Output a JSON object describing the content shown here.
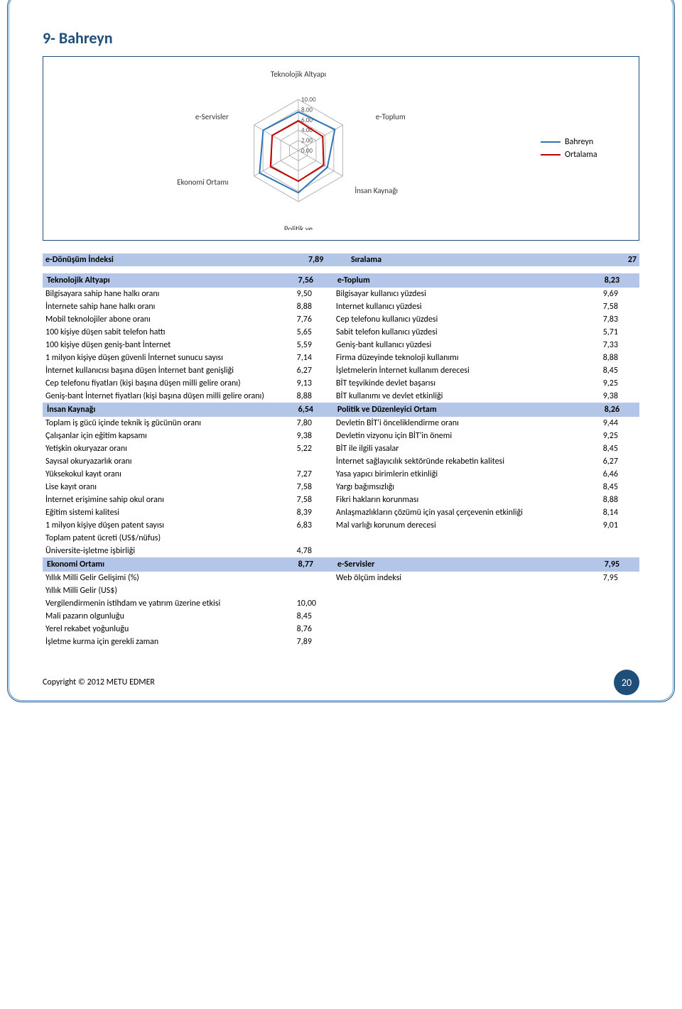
{
  "title": "9-  Bahreyn",
  "chart": {
    "axes": [
      "Teknolojik Altyapı",
      "e-Toplum",
      "İnsan Kaynağı",
      "Politik ve\nDüzenleyici Ortam",
      "Ekonomi Ortamı",
      "e-Servisler"
    ],
    "ticks": [
      "10.00",
      "8.00",
      "6.00",
      "4.00",
      "2.00",
      "0.00"
    ],
    "max": 10,
    "series": [
      {
        "name": "Bahreyn",
        "color": "#2e75b6",
        "values": [
          7.56,
          8.23,
          6.54,
          8.26,
          8.77,
          7.95
        ]
      },
      {
        "name": "Ortalama",
        "color": "#c00000",
        "values": [
          5.8,
          5.5,
          5.7,
          6.0,
          6.3,
          5.9
        ]
      }
    ],
    "grid_color": "#a6a6a6",
    "bg": "#ffffff"
  },
  "index": {
    "label": "e-Dönüşüm İndeksi",
    "value": "7,89",
    "rank_label": "Sıralama",
    "rank": "27"
  },
  "sections": [
    {
      "left_hdr": "Teknolojik Altyapı",
      "left_val": "7,56",
      "right_hdr": "e-Toplum",
      "right_val": "8,23",
      "rows": [
        [
          "Bilgisayara sahip hane halkı oranı",
          "9,50",
          "Bilgisayar kullanıcı yüzdesi",
          "9,69"
        ],
        [
          "İnternete sahip hane halkı oranı",
          "8,88",
          "Internet kullanıcı yüzdesi",
          "7,58"
        ],
        [
          "Mobil teknolojiler abone oranı",
          "7,76",
          "Cep telefonu kullanıcı yüzdesi",
          "7,83"
        ],
        [
          "100 kişiye düşen sabit telefon hattı",
          "5,65",
          "Sabit telefon kullanıcı yüzdesi",
          "5,71"
        ],
        [
          "100 kişiye düşen geniş-bant İnternet",
          "5,59",
          "Geniş-bant kullanıcı yüzdesi",
          "7,33"
        ],
        [
          "1 milyon kişiye düşen güvenli İnternet sunucu sayısı",
          "7,14",
          "Firma düzeyinde teknoloji kullanımı",
          "8,88"
        ],
        [
          "İnternet kullanıcısı başına düşen İnternet bant genişliği",
          "6,27",
          "İşletmelerin İnternet kullanım derecesi",
          "8,45"
        ],
        [
          "Cep telefonu fiyatları (kişi başına düşen milli gelire oranı)",
          "9,13",
          "BİT teşvikinde devlet başarısı",
          "9,25"
        ],
        [
          "Geniş-bant İnternet fiyatları (kişi başına düşen milli gelire oranı)",
          "8,88",
          "BİT kullanımı ve devlet etkinliği",
          "9,38"
        ]
      ]
    },
    {
      "left_hdr": "İnsan Kaynağı",
      "left_val": "6,54",
      "right_hdr": "Politik ve Düzenleyici Ortam",
      "right_val": "8,26",
      "rows": [
        [
          "Toplam iş gücü içinde teknik iş gücünün oranı",
          "7,80",
          "Devletin BİT'i önceliklendirme oranı",
          "9,44"
        ],
        [
          "Çalışanlar için eğitim kapsamı",
          "9,38",
          "Devletin vizyonu için BİT'in önemi",
          "9,25"
        ],
        [
          "Yetişkin okuryazar oranı",
          "5,22",
          "BİT ile ilgili yasalar",
          "8,45"
        ],
        [
          "Sayısal okuryazarlık oranı",
          "",
          "İnternet sağlayıcılık sektöründe rekabetin kalitesi",
          "6,27"
        ],
        [
          "Yüksekokul kayıt oranı",
          "7,27",
          "Yasa yapıcı birimlerin etkinliği",
          "6,46"
        ],
        [
          "Lise kayıt oranı",
          "7,58",
          "Yargı bağımsızlığı",
          "8,45"
        ],
        [
          "İnternet erişimine sahip okul oranı",
          "7,58",
          "Fikri hakların korunması",
          "8,88"
        ],
        [
          "Eğitim sistemi kalitesi",
          "8,39",
          "Anlaşmazlıkların çözümü için yasal çerçevenin etkinliği",
          "8,14"
        ],
        [
          "1 milyon kişiye düşen patent sayısı",
          "6,83",
          "Mal varlığı korunum derecesi",
          "9,01"
        ],
        [
          "Toplam patent ücreti (US$/nüfus)",
          "",
          "",
          ""
        ],
        [
          "Üniversite-işletme işbirliği",
          "4,78",
          "",
          ""
        ]
      ]
    },
    {
      "left_hdr": "Ekonomi Ortamı",
      "left_val": "8,77",
      "right_hdr": "e-Servisler",
      "right_val": "7,95",
      "rows": [
        [
          "Yıllık Milli Gelir Gelişimi (%)",
          "",
          "Web ölçüm indeksi",
          "7,95"
        ],
        [
          "Yıllık Milli Gelir (US$)",
          "",
          "",
          ""
        ],
        [
          "Vergilendirmenin istihdam ve yatırım üzerine etkisi",
          "10,00",
          "",
          ""
        ],
        [
          "Mali pazarın olgunluğu",
          "8,45",
          "",
          ""
        ],
        [
          "Yerel rekabet yoğunluğu",
          "8,76",
          "",
          ""
        ],
        [
          "İşletme kurma için gerekli zaman",
          "7,89",
          "",
          ""
        ]
      ]
    }
  ],
  "footer": {
    "copyright": "Copyright © 2012 METU EDMER",
    "page": "20"
  }
}
